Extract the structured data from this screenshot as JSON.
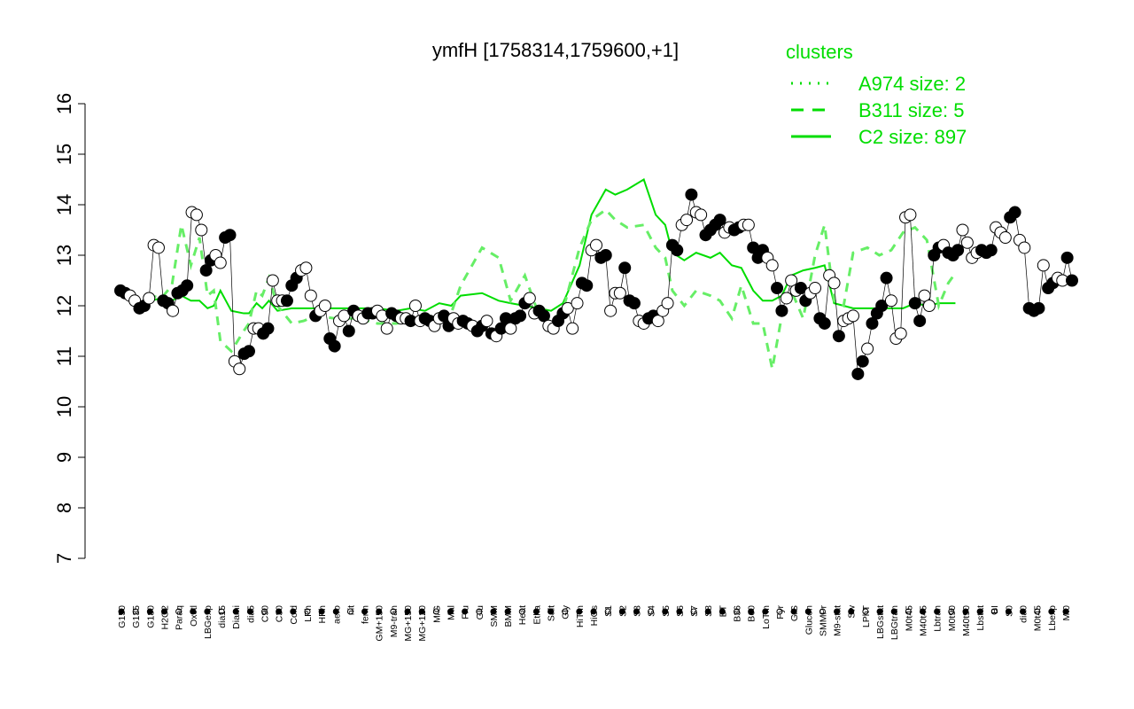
{
  "chart_data": {
    "type": "line",
    "title": "ymfH [1758314,1759600,+1]",
    "xlabel": "",
    "ylabel": "",
    "ylim": [
      7,
      16
    ],
    "yticks": [
      7,
      8,
      9,
      10,
      11,
      12,
      13,
      14,
      15,
      16
    ],
    "legend": {
      "title": "clusters",
      "placement": "top-right",
      "entries": [
        {
          "label": "A974 size: 2",
          "style": "dotted"
        },
        {
          "label": "B311 size: 5",
          "style": "dashed"
        },
        {
          "label": "C2 size: 897",
          "style": "solid"
        }
      ]
    },
    "x_tick_labels": [
      "G150",
      "G135",
      "G180",
      "H2O2",
      "Paraq",
      "Oxctl",
      "LBGexp",
      "dia15",
      "Diami",
      "dia5",
      "C90",
      "C30",
      "Cold",
      "LPh",
      "HPh",
      "aero",
      "nit",
      "ferm",
      "GM+150",
      "M9-tran",
      "MG+150",
      "MG+120",
      "M/G",
      "Mal",
      "Fru",
      "Glu",
      "SMM",
      "BMM",
      "Heat",
      "Etha",
      "Salt",
      "Gly",
      "HiTm",
      "HiOs",
      "S1",
      "S2",
      "S3",
      "S4",
      "S5",
      "S6",
      "S7",
      "S8",
      "BT",
      "B36",
      "B60",
      "LoTm",
      "Pyr",
      "G/S",
      "Glucon",
      "SMMPr",
      "M9-stat",
      "Sw",
      "LPhT",
      "LBGstat",
      "LBGtran",
      "M0t45",
      "M40t45",
      "Lbtran",
      "M0t90",
      "M40t90",
      "Lbstat",
      "BI",
      "S0",
      "dia0",
      "M0t45",
      "Lbexp",
      "Mt0"
    ],
    "curve_points": [
      [
        0,
        12.25
      ],
      [
        2.1,
        12.15
      ],
      [
        4.2,
        12.05
      ],
      [
        6.4,
        12.2
      ],
      [
        8.6,
        12.15
      ],
      [
        10.8,
        12.4
      ],
      [
        12.8,
        13.6
      ],
      [
        14.8,
        12.8
      ],
      [
        16.6,
        13.35
      ],
      [
        18.3,
        12.2
      ],
      [
        19.6,
        12.3
      ],
      [
        21,
        11.3
      ],
      [
        23.3,
        11.1
      ],
      [
        25.9,
        11.5
      ],
      [
        27,
        11.65
      ],
      [
        28.6,
        12.3
      ],
      [
        29.8,
        12.2
      ],
      [
        31.2,
        12.55
      ],
      [
        33,
        12.0
      ],
      [
        36,
        11.65
      ],
      [
        38.5,
        11.7
      ],
      [
        41,
        11.8
      ],
      [
        45,
        11.75
      ],
      [
        50,
        11.75
      ],
      [
        54,
        11.65
      ],
      [
        58,
        11.65
      ],
      [
        61,
        11.7
      ],
      [
        64,
        11.75
      ],
      [
        67,
        11.85
      ],
      [
        69.5,
        11.85
      ],
      [
        71.5,
        12.4
      ],
      [
        76,
        13.15
      ],
      [
        79.5,
        12.95
      ],
      [
        82,
        12.1
      ],
      [
        85,
        12.6
      ],
      [
        88,
        11.8
      ],
      [
        90.5,
        11.7
      ],
      [
        93,
        11.9
      ],
      [
        96.5,
        13.15
      ],
      [
        99,
        13.7
      ],
      [
        102,
        13.9
      ],
      [
        104,
        13.7
      ],
      [
        106.5,
        13.55
      ],
      [
        110,
        13.6
      ],
      [
        112.5,
        13.15
      ],
      [
        114.5,
        12.95
      ],
      [
        116,
        12.3
      ],
      [
        118.5,
        12.0
      ],
      [
        121,
        12.3
      ],
      [
        124,
        12.2
      ],
      [
        126,
        12.1
      ],
      [
        128.5,
        11.75
      ],
      [
        130.5,
        12.4
      ],
      [
        133,
        11.65
      ],
      [
        135,
        11.65
      ],
      [
        137,
        10.75
      ],
      [
        139,
        11.8
      ],
      [
        141,
        12.3
      ],
      [
        143.5,
        11.75
      ],
      [
        146,
        13.0
      ],
      [
        148,
        13.6
      ],
      [
        150,
        12.1
      ],
      [
        152,
        12.0
      ],
      [
        154,
        13.05
      ],
      [
        157,
        13.15
      ],
      [
        159.5,
        13.0
      ],
      [
        162,
        13.1
      ],
      [
        164.5,
        13.45
      ],
      [
        167,
        13.55
      ],
      [
        169.5,
        13.3
      ],
      [
        172,
        12.0
      ],
      [
        174,
        12.45
      ],
      [
        175.5,
        12.65
      ]
    ],
    "main_line_points": [
      [
        0,
        12.2
      ],
      [
        2.1,
        12.1
      ],
      [
        4.2,
        12.05
      ],
      [
        6.4,
        12.1
      ],
      [
        8.6,
        12.15
      ],
      [
        10.8,
        12.1
      ],
      [
        12.8,
        12.2
      ],
      [
        14.8,
        12.1
      ],
      [
        16.6,
        12.1
      ],
      [
        18.3,
        11.95
      ],
      [
        19.6,
        12.0
      ],
      [
        21,
        12.3
      ],
      [
        23.3,
        11.9
      ],
      [
        25.9,
        11.85
      ],
      [
        27,
        11.85
      ],
      [
        28.6,
        12.05
      ],
      [
        29.8,
        11.95
      ],
      [
        31.2,
        12.1
      ],
      [
        33,
        11.9
      ],
      [
        36,
        11.95
      ],
      [
        38.5,
        11.95
      ],
      [
        41,
        11.95
      ],
      [
        45,
        11.95
      ],
      [
        50,
        11.95
      ],
      [
        54,
        11.95
      ],
      [
        58,
        11.9
      ],
      [
        61,
        11.95
      ],
      [
        64,
        11.9
      ],
      [
        67,
        12.05
      ],
      [
        69.5,
        12.0
      ],
      [
        71.5,
        12.2
      ],
      [
        76,
        12.25
      ],
      [
        79.5,
        12.1
      ],
      [
        82,
        12.05
      ],
      [
        85,
        12.0
      ],
      [
        88,
        11.95
      ],
      [
        90.5,
        11.9
      ],
      [
        93,
        12.05
      ],
      [
        96.5,
        12.8
      ],
      [
        99,
        13.8
      ],
      [
        102,
        14.3
      ],
      [
        104,
        14.2
      ],
      [
        106.5,
        14.3
      ],
      [
        110,
        14.5
      ],
      [
        112.5,
        13.8
      ],
      [
        114.5,
        13.6
      ],
      [
        116,
        13.05
      ],
      [
        118.5,
        12.9
      ],
      [
        121,
        13.05
      ],
      [
        124,
        12.95
      ],
      [
        126,
        13.05
      ],
      [
        128.5,
        12.8
      ],
      [
        130.5,
        12.75
      ],
      [
        133,
        12.3
      ],
      [
        135,
        12.1
      ],
      [
        137,
        12.1
      ],
      [
        139,
        12.2
      ],
      [
        141,
        12.6
      ],
      [
        143.5,
        12.7
      ],
      [
        146,
        12.75
      ],
      [
        148,
        12.8
      ],
      [
        150,
        12.05
      ],
      [
        152,
        12.0
      ],
      [
        154,
        11.95
      ],
      [
        157,
        11.95
      ],
      [
        159.5,
        11.95
      ],
      [
        162,
        11.95
      ],
      [
        164.5,
        11.95
      ],
      [
        167,
        12.05
      ],
      [
        169.5,
        12.0
      ],
      [
        172,
        12.05
      ],
      [
        174,
        12.05
      ],
      [
        175.5,
        12.05
      ]
    ],
    "points": [
      [
        0,
        12.3,
        1
      ],
      [
        1,
        12.25,
        1
      ],
      [
        2,
        12.2,
        0
      ],
      [
        3,
        12.1,
        0
      ],
      [
        4,
        11.95,
        1
      ],
      [
        5,
        12.0,
        1
      ],
      [
        6,
        12.15,
        0
      ],
      [
        7,
        13.2,
        0
      ],
      [
        8,
        13.15,
        0
      ],
      [
        9,
        12.1,
        1
      ],
      [
        10,
        12.05,
        1
      ],
      [
        11,
        11.9,
        0
      ],
      [
        12,
        12.25,
        1
      ],
      [
        13,
        12.3,
        1
      ],
      [
        14,
        12.4,
        1
      ],
      [
        15,
        13.85,
        0
      ],
      [
        16,
        13.8,
        0
      ],
      [
        17,
        13.5,
        0
      ],
      [
        18,
        12.7,
        1
      ],
      [
        19,
        12.9,
        1
      ],
      [
        20,
        13.0,
        0
      ],
      [
        21,
        12.85,
        0
      ],
      [
        22,
        13.35,
        1
      ],
      [
        23,
        13.4,
        1
      ],
      [
        24,
        10.9,
        0
      ],
      [
        25,
        10.75,
        0
      ],
      [
        26,
        11.05,
        1
      ],
      [
        27,
        11.1,
        1
      ],
      [
        28,
        11.55,
        0
      ],
      [
        29,
        11.55,
        0
      ],
      [
        30,
        11.45,
        1
      ],
      [
        31,
        11.55,
        1
      ],
      [
        32,
        12.5,
        0
      ],
      [
        33,
        12.1,
        0
      ],
      [
        34,
        12.1,
        0
      ],
      [
        35,
        12.1,
        1
      ],
      [
        36,
        12.4,
        1
      ],
      [
        37,
        12.55,
        1
      ],
      [
        38,
        12.7,
        0
      ],
      [
        39,
        12.75,
        0
      ],
      [
        40,
        12.2,
        0
      ],
      [
        41,
        11.8,
        1
      ],
      [
        42,
        11.9,
        0
      ],
      [
        43,
        12.0,
        0
      ],
      [
        44,
        11.35,
        1
      ],
      [
        45,
        11.2,
        1
      ],
      [
        46,
        11.7,
        0
      ],
      [
        47,
        11.8,
        0
      ],
      [
        48,
        11.5,
        1
      ],
      [
        49,
        11.9,
        1
      ],
      [
        50,
        11.8,
        0
      ],
      [
        51,
        11.75,
        0
      ],
      [
        52,
        11.85,
        1
      ],
      [
        53,
        11.85,
        1
      ],
      [
        54,
        11.9,
        0
      ],
      [
        55,
        11.8,
        0
      ],
      [
        56,
        11.55,
        0
      ],
      [
        57,
        11.85,
        1
      ],
      [
        58,
        11.8,
        1
      ],
      [
        59,
        11.75,
        0
      ],
      [
        60,
        11.75,
        0
      ],
      [
        61,
        11.7,
        1
      ],
      [
        62,
        12.0,
        0
      ],
      [
        63,
        11.7,
        0
      ],
      [
        64,
        11.75,
        1
      ],
      [
        65,
        11.7,
        1
      ],
      [
        66,
        11.6,
        0
      ],
      [
        67,
        11.75,
        0
      ],
      [
        68,
        11.8,
        1
      ],
      [
        69,
        11.6,
        1
      ],
      [
        70,
        11.75,
        0
      ],
      [
        71,
        11.65,
        0
      ],
      [
        72,
        11.7,
        1
      ],
      [
        73,
        11.65,
        1
      ],
      [
        74,
        11.6,
        0
      ],
      [
        75,
        11.5,
        1
      ],
      [
        76,
        11.6,
        1
      ],
      [
        77,
        11.7,
        0
      ],
      [
        78,
        11.45,
        1
      ],
      [
        79,
        11.4,
        0
      ],
      [
        80,
        11.55,
        1
      ],
      [
        81,
        11.75,
        1
      ],
      [
        82,
        11.55,
        0
      ],
      [
        83,
        11.75,
        1
      ],
      [
        84,
        11.8,
        1
      ],
      [
        85,
        12.05,
        1
      ],
      [
        86,
        12.15,
        0
      ],
      [
        87,
        11.85,
        0
      ],
      [
        88,
        11.9,
        1
      ],
      [
        89,
        11.8,
        1
      ],
      [
        90,
        11.6,
        0
      ],
      [
        91,
        11.55,
        0
      ],
      [
        92,
        11.7,
        1
      ],
      [
        93,
        11.85,
        1
      ],
      [
        94,
        11.95,
        0
      ],
      [
        95,
        11.55,
        0
      ],
      [
        96,
        12.05,
        0
      ],
      [
        97,
        12.45,
        1
      ],
      [
        98,
        12.4,
        1
      ],
      [
        99,
        13.1,
        0
      ],
      [
        100,
        13.2,
        0
      ],
      [
        101,
        12.95,
        1
      ],
      [
        102,
        13.0,
        1
      ],
      [
        103,
        11.9,
        0
      ],
      [
        104,
        12.25,
        0
      ],
      [
        105,
        12.25,
        0
      ],
      [
        106,
        12.75,
        1
      ],
      [
        107,
        12.1,
        1
      ],
      [
        108,
        12.05,
        1
      ],
      [
        109,
        11.7,
        0
      ],
      [
        110,
        11.65,
        0
      ],
      [
        111,
        11.75,
        1
      ],
      [
        112,
        11.8,
        1
      ],
      [
        113,
        11.7,
        0
      ],
      [
        114,
        11.9,
        0
      ],
      [
        115,
        12.05,
        0
      ],
      [
        116,
        13.2,
        1
      ],
      [
        117,
        13.1,
        1
      ],
      [
        118,
        13.6,
        0
      ],
      [
        119,
        13.7,
        0
      ],
      [
        120,
        14.2,
        1
      ],
      [
        121,
        13.85,
        0
      ],
      [
        122,
        13.8,
        0
      ],
      [
        123,
        13.4,
        1
      ],
      [
        124,
        13.5,
        1
      ],
      [
        125,
        13.6,
        1
      ],
      [
        126,
        13.7,
        1
      ],
      [
        127,
        13.45,
        0
      ],
      [
        128,
        13.55,
        0
      ],
      [
        129,
        13.5,
        1
      ],
      [
        130,
        13.55,
        1
      ],
      [
        131,
        13.6,
        0
      ],
      [
        132,
        13.6,
        0
      ],
      [
        133,
        13.15,
        1
      ],
      [
        134,
        12.95,
        1
      ],
      [
        135,
        13.1,
        1
      ],
      [
        136,
        12.95,
        0
      ],
      [
        137,
        12.8,
        0
      ],
      [
        138,
        12.35,
        1
      ],
      [
        139,
        11.9,
        1
      ],
      [
        140,
        12.15,
        0
      ],
      [
        141,
        12.5,
        0
      ],
      [
        142,
        12.3,
        0
      ],
      [
        143,
        12.35,
        1
      ],
      [
        144,
        12.1,
        1
      ],
      [
        145,
        12.25,
        0
      ],
      [
        146,
        12.35,
        0
      ],
      [
        147,
        11.75,
        1
      ],
      [
        148,
        11.65,
        1
      ],
      [
        149,
        12.6,
        0
      ],
      [
        150,
        12.45,
        0
      ],
      [
        151,
        11.4,
        1
      ],
      [
        152,
        11.7,
        0
      ],
      [
        153,
        11.75,
        0
      ],
      [
        154,
        11.8,
        0
      ],
      [
        155,
        10.65,
        1
      ],
      [
        156,
        10.9,
        1
      ],
      [
        157,
        11.15,
        0
      ],
      [
        158,
        11.65,
        1
      ],
      [
        159,
        11.85,
        1
      ],
      [
        160,
        12.0,
        1
      ],
      [
        161,
        12.55,
        1
      ],
      [
        162,
        12.1,
        0
      ],
      [
        163,
        11.35,
        0
      ],
      [
        164,
        11.45,
        0
      ],
      [
        165,
        13.75,
        0
      ],
      [
        166,
        13.8,
        0
      ],
      [
        167,
        12.05,
        1
      ],
      [
        168,
        11.7,
        1
      ],
      [
        169,
        12.2,
        0
      ],
      [
        170,
        12.0,
        0
      ],
      [
        171,
        13.0,
        1
      ],
      [
        172,
        13.15,
        1
      ],
      [
        173,
        13.2,
        0
      ],
      [
        174,
        13.05,
        1
      ],
      [
        175,
        13.0,
        1
      ],
      [
        176,
        13.1,
        1
      ],
      [
        177,
        13.5,
        0
      ],
      [
        178,
        13.25,
        0
      ],
      [
        179,
        12.95,
        0
      ],
      [
        180,
        13.05,
        0
      ],
      [
        181,
        13.1,
        1
      ],
      [
        182,
        13.05,
        1
      ],
      [
        183,
        13.1,
        1
      ],
      [
        184,
        13.55,
        0
      ],
      [
        185,
        13.45,
        0
      ],
      [
        186,
        13.35,
        0
      ],
      [
        187,
        13.75,
        1
      ],
      [
        188,
        13.85,
        1
      ],
      [
        189,
        13.3,
        0
      ],
      [
        190,
        13.15,
        0
      ],
      [
        191,
        11.95,
        1
      ],
      [
        192,
        11.9,
        1
      ],
      [
        193,
        11.95,
        1
      ],
      [
        194,
        12.8,
        0
      ],
      [
        195,
        12.35,
        1
      ],
      [
        196,
        12.45,
        1
      ],
      [
        197,
        12.55,
        0
      ],
      [
        198,
        12.5,
        0
      ],
      [
        199,
        12.95,
        1
      ],
      [
        200,
        12.5,
        1
      ]
    ]
  }
}
